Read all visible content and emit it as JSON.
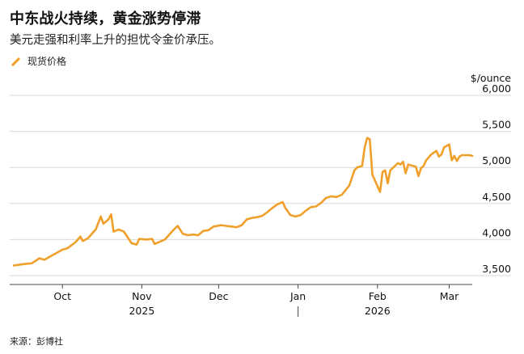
{
  "header": {
    "title": "中东战火持续，黄金涨势停滞",
    "subtitle": "美元走强和利率上升的担忧令金价承压。"
  },
  "legend": {
    "label": "现货价格",
    "color": "#f0a02a"
  },
  "footer": {
    "source": "来源：彭博社"
  },
  "chart_data": {
    "type": "line",
    "title": "中东战火持续，黄金涨势停滞",
    "subtitle": "美元走强和利率上升的担忧令金价承压。",
    "y_unit_label": "$/ounce",
    "ylim": [
      3450,
      6100
    ],
    "y_ticks": [
      3500,
      4000,
      4500,
      5000,
      5500,
      6000
    ],
    "y_tick_labels": [
      "3,500",
      "4,000",
      "4,500",
      "5,000",
      "5,500",
      "6,000"
    ],
    "x_range": [
      "2025-09-12",
      "2026-03-10"
    ],
    "x_ticks": [
      {
        "date": "2025-10-01",
        "label": "Oct"
      },
      {
        "date": "2025-11-01",
        "label": "Nov"
      },
      {
        "date": "2025-12-01",
        "label": "Dec"
      },
      {
        "date": "2026-01-01",
        "label": "Jan"
      },
      {
        "date": "2026-02-01",
        "label": "Feb"
      },
      {
        "date": "2026-03-01",
        "label": "Mar"
      }
    ],
    "year_labels": [
      {
        "date": "2025-11-01",
        "label": "2025"
      },
      {
        "date": "2026-02-01",
        "label": "2026"
      }
    ],
    "year_divider_date": "2026-01-01",
    "grid": "horizontal",
    "legend_position": "top-left",
    "series": [
      {
        "name": "现货价格",
        "color": "#f0a02a",
        "points": [
          [
            "2025-09-12",
            3640
          ],
          [
            "2025-09-16",
            3660
          ],
          [
            "2025-09-19",
            3670
          ],
          [
            "2025-09-22",
            3740
          ],
          [
            "2025-09-24",
            3720
          ],
          [
            "2025-09-26",
            3760
          ],
          [
            "2025-09-29",
            3820
          ],
          [
            "2025-10-01",
            3860
          ],
          [
            "2025-10-03",
            3880
          ],
          [
            "2025-10-06",
            3960
          ],
          [
            "2025-10-08",
            4040
          ],
          [
            "2025-10-09",
            3980
          ],
          [
            "2025-10-11",
            4020
          ],
          [
            "2025-10-14",
            4140
          ],
          [
            "2025-10-16",
            4320
          ],
          [
            "2025-10-17",
            4220
          ],
          [
            "2025-10-19",
            4280
          ],
          [
            "2025-10-20",
            4350
          ],
          [
            "2025-10-21",
            4110
          ],
          [
            "2025-10-23",
            4140
          ],
          [
            "2025-10-25",
            4110
          ],
          [
            "2025-10-28",
            3950
          ],
          [
            "2025-10-30",
            3930
          ],
          [
            "2025-10-31",
            4010
          ],
          [
            "2025-11-03",
            4000
          ],
          [
            "2025-11-05",
            4010
          ],
          [
            "2025-11-06",
            3940
          ],
          [
            "2025-11-08",
            3970
          ],
          [
            "2025-11-10",
            4000
          ],
          [
            "2025-11-13",
            4120
          ],
          [
            "2025-11-15",
            4190
          ],
          [
            "2025-11-17",
            4080
          ],
          [
            "2025-11-19",
            4060
          ],
          [
            "2025-11-21",
            4070
          ],
          [
            "2025-11-23",
            4060
          ],
          [
            "2025-11-25",
            4120
          ],
          [
            "2025-11-27",
            4130
          ],
          [
            "2025-11-29",
            4180
          ],
          [
            "2025-12-02",
            4200
          ],
          [
            "2025-12-04",
            4190
          ],
          [
            "2025-12-06",
            4180
          ],
          [
            "2025-12-08",
            4170
          ],
          [
            "2025-12-10",
            4200
          ],
          [
            "2025-12-12",
            4280
          ],
          [
            "2025-12-14",
            4300
          ],
          [
            "2025-12-16",
            4310
          ],
          [
            "2025-12-18",
            4330
          ],
          [
            "2025-12-20",
            4380
          ],
          [
            "2025-12-22",
            4440
          ],
          [
            "2025-12-24",
            4490
          ],
          [
            "2025-12-26",
            4520
          ],
          [
            "2025-12-27",
            4440
          ],
          [
            "2025-12-29",
            4340
          ],
          [
            "2025-12-31",
            4320
          ],
          [
            "2026-01-02",
            4340
          ],
          [
            "2026-01-04",
            4400
          ],
          [
            "2026-01-06",
            4450
          ],
          [
            "2026-01-08",
            4460
          ],
          [
            "2026-01-10",
            4510
          ],
          [
            "2026-01-12",
            4580
          ],
          [
            "2026-01-14",
            4600
          ],
          [
            "2026-01-16",
            4590
          ],
          [
            "2026-01-18",
            4620
          ],
          [
            "2026-01-19",
            4660
          ],
          [
            "2026-01-21",
            4750
          ],
          [
            "2026-01-23",
            4960
          ],
          [
            "2026-01-24",
            5000
          ],
          [
            "2026-01-26",
            5020
          ],
          [
            "2026-01-27",
            5280
          ],
          [
            "2026-01-28",
            5410
          ],
          [
            "2026-01-29",
            5390
          ],
          [
            "2026-01-30",
            4900
          ],
          [
            "2026-02-02",
            4660
          ],
          [
            "2026-02-03",
            4940
          ],
          [
            "2026-02-04",
            4960
          ],
          [
            "2026-02-05",
            4780
          ],
          [
            "2026-02-06",
            4960
          ],
          [
            "2026-02-09",
            5060
          ],
          [
            "2026-02-10",
            5040
          ],
          [
            "2026-02-11",
            5080
          ],
          [
            "2026-02-12",
            4920
          ],
          [
            "2026-02-13",
            5040
          ],
          [
            "2026-02-16",
            5010
          ],
          [
            "2026-02-17",
            4880
          ],
          [
            "2026-02-18",
            4990
          ],
          [
            "2026-02-19",
            5020
          ],
          [
            "2026-02-20",
            5100
          ],
          [
            "2026-02-22",
            5180
          ],
          [
            "2026-02-24",
            5230
          ],
          [
            "2026-02-25",
            5150
          ],
          [
            "2026-02-26",
            5180
          ],
          [
            "2026-02-27",
            5280
          ],
          [
            "2026-03-01",
            5320
          ],
          [
            "2026-03-02",
            5100
          ],
          [
            "2026-03-03",
            5160
          ],
          [
            "2026-03-04",
            5090
          ],
          [
            "2026-03-05",
            5150
          ],
          [
            "2026-03-06",
            5170
          ],
          [
            "2026-03-09",
            5170
          ],
          [
            "2026-03-10",
            5160
          ]
        ]
      }
    ]
  }
}
